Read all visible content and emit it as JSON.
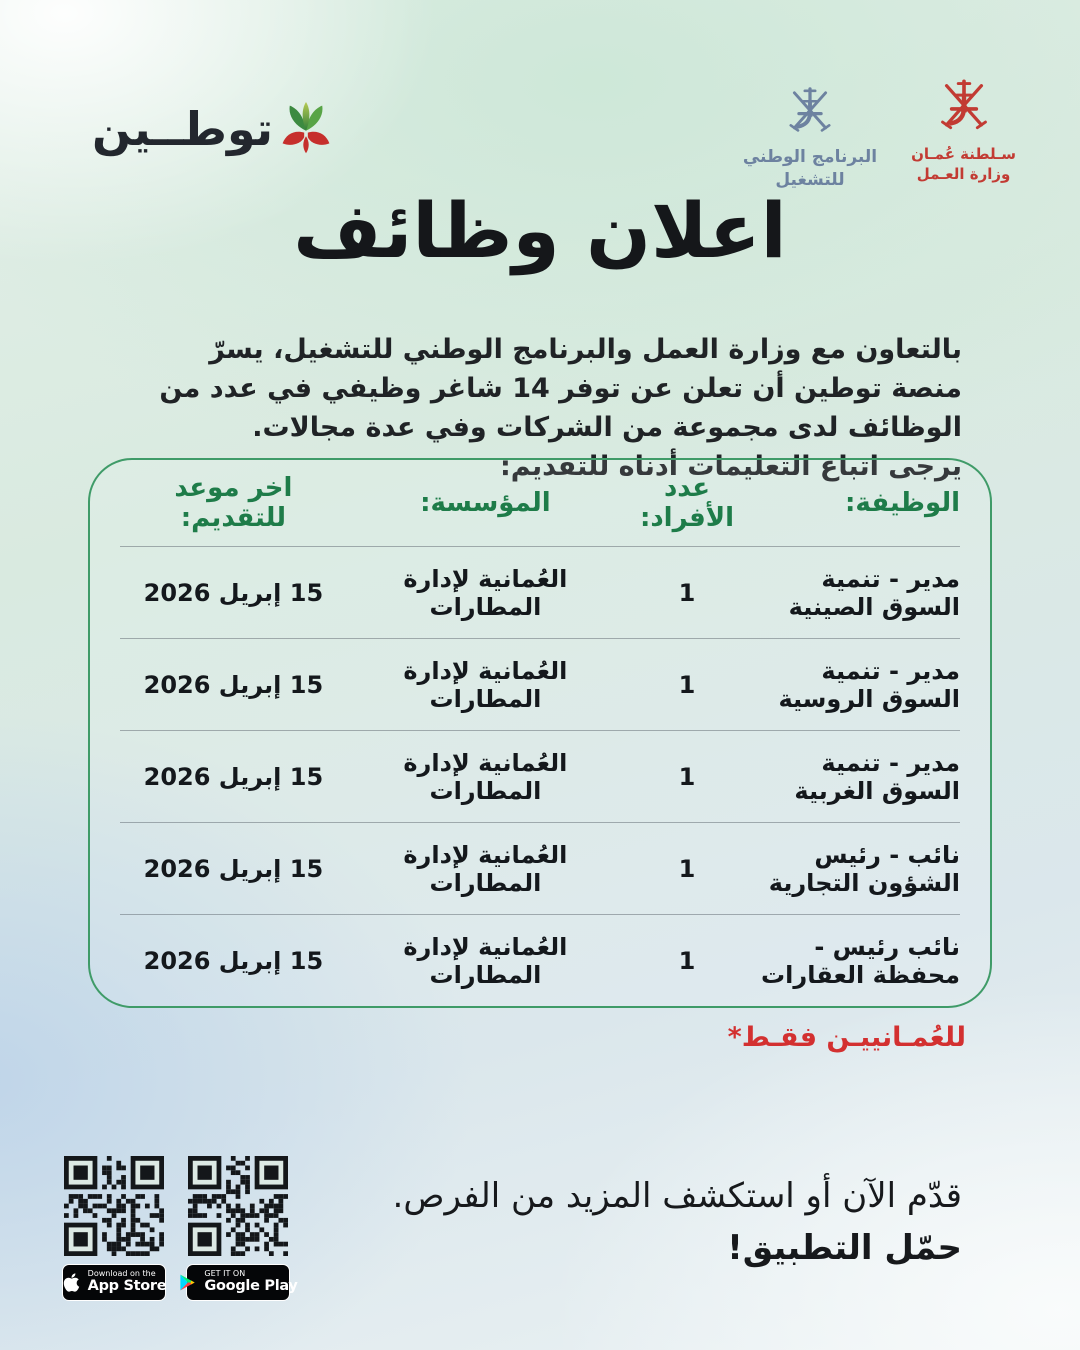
{
  "header": {
    "tawteen": {
      "wordmark": "توطــين"
    },
    "nep_logo": {
      "line1": "البرنامج الوطني",
      "line2": "للتشغيل"
    },
    "ministry_logo": {
      "line1": "سـلطنة عُمـان",
      "line2": "وزارة العـمل"
    }
  },
  "title": "اعلان وظائف",
  "intro": {
    "paragraph": "بالتعاون مع وزارة العمل والبرنامج الوطني للتشغيل، يسرّ منصة توطين أن تعلن عن توفر 14 شاغر وظيفي في عدد من الوظائف لدى مجموعة من الشركات وفي عدة مجالات.",
    "instruction": "يرجى اتباع التعليمات أدناه للتقديم:"
  },
  "jobs_table": {
    "headers": {
      "job": "الوظيفة:",
      "count": "عدد الأفراد:",
      "org": "المؤسسة:",
      "deadline": "اخر موعد للتقديم:"
    },
    "rows": [
      {
        "job": "مدير - تنمية السوق الصينية",
        "count": "1",
        "org": "العُمانية لإدارة المطارات",
        "deadline": "15 إبريل 2026"
      },
      {
        "job": "مدير - تنمية السوق الروسية",
        "count": "1",
        "org": "العُمانية لإدارة المطارات",
        "deadline": "15 إبريل 2026"
      },
      {
        "job": "مدير - تنمية السوق الغربية",
        "count": "1",
        "org": "العُمانية لإدارة المطارات",
        "deadline": "15 إبريل 2026"
      },
      {
        "job": "نائب - رئيس الشؤون التجارية",
        "count": "1",
        "org": "العُمانية لإدارة المطارات",
        "deadline": "15 إبريل 2026"
      },
      {
        "job": "نائب رئيس - محفظة العقارات",
        "count": "1",
        "org": "العُمانية لإدارة المطارات",
        "deadline": "15 إبريل 2026"
      }
    ]
  },
  "note": "للعُمـانييـن فقـط*",
  "footer": {
    "cta_line1": "قدّم الآن أو استكشف المزيد من الفرص.",
    "cta_line2": "حمّل التطبيق!",
    "app_store_badge": {
      "top": "Download on the",
      "bottom": "App Store"
    },
    "google_play_badge": {
      "top": "GET IT ON",
      "bottom": "Google Play"
    }
  },
  "colors": {
    "table_green": "#3f9b68",
    "header_text_green": "#1e7c49",
    "note_red": "#d33030",
    "ministry_red": "#c23b33",
    "nep_slate": "#6d82a0"
  }
}
